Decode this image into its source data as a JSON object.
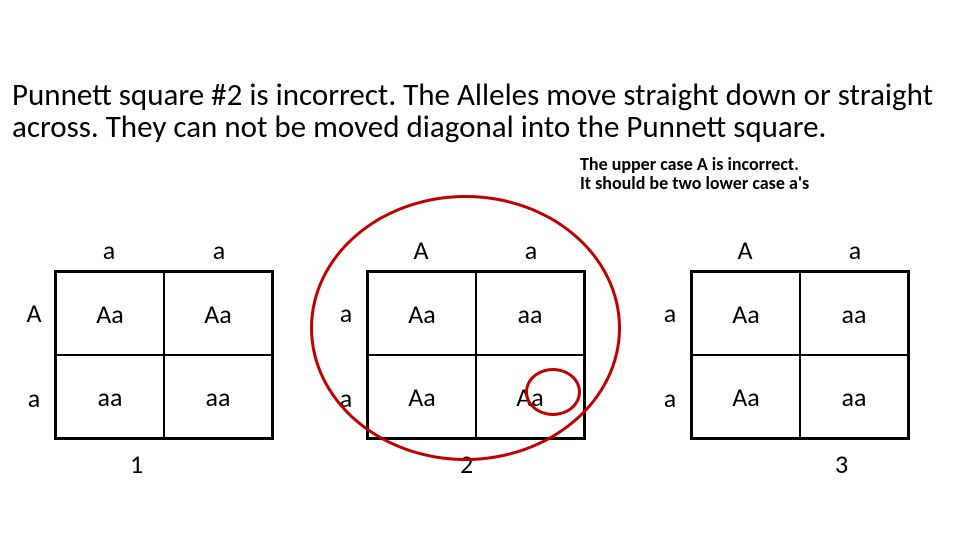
{
  "colors": {
    "text": "#000000",
    "background": "#ffffff",
    "annotation": "#c00000",
    "grid_border": "#000000"
  },
  "fontsizes": {
    "main_pt": 31,
    "note_pt": 18,
    "cell_pt": 26,
    "number_pt": 26
  },
  "main_text": "Punnett square #2 is incorrect. The Alleles move straight down or straight across. They can not be moved diagonal into the Punnett square.",
  "note_text": "The upper case A is incorrect. It should be two lower case a's",
  "squares": [
    {
      "number": "1",
      "top_headers": [
        "a",
        "a"
      ],
      "left_headers": [
        "A",
        "a"
      ],
      "cells": [
        "Aa",
        "Aa",
        "aa",
        "aa"
      ]
    },
    {
      "number": "2",
      "top_headers": [
        "A",
        "a"
      ],
      "left_headers": [
        "a",
        "a"
      ],
      "cells": [
        "Aa",
        "aa",
        "Aa",
        "Aa"
      ]
    },
    {
      "number": "3",
      "top_headers": [
        "A",
        "a"
      ],
      "left_headers": [
        "a",
        "a"
      ],
      "cells": [
        "Aa",
        "aa",
        "Aa",
        "aa"
      ]
    }
  ],
  "annotations": {
    "big_circle_on_square": 2,
    "small_circle_on_cell": {
      "square": 2,
      "cell_index": 3
    }
  }
}
